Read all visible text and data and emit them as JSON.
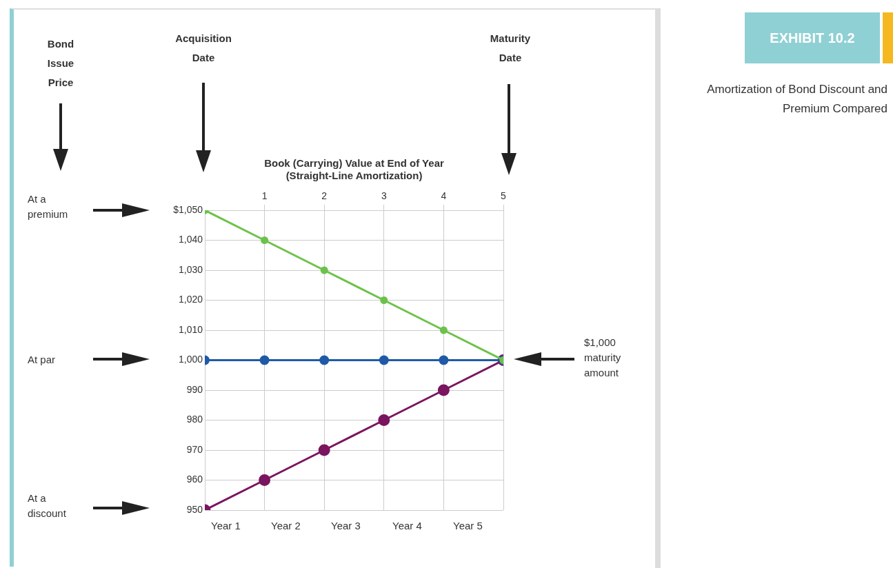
{
  "chart_data": {
    "type": "line",
    "title": "Amortization of Bond Discount and Premium Compared",
    "subtitle": "EXHIBIT 10.2",
    "x2label": "Book (Carrying) Value at End of Year\n(Straight-Line Amortization)",
    "x": [
      0,
      1,
      2,
      3,
      4,
      5
    ],
    "series": [
      {
        "color": "#6cc24a",
        "values": [
          1050,
          1040,
          1030,
          1020,
          1010,
          1000
        ]
      },
      {
        "color": "#1f5aa6",
        "values": [
          1000,
          1000,
          1000,
          1000,
          1000,
          1000
        ]
      },
      {
        "color": "#7a1560",
        "values": [
          950,
          960,
          970,
          980,
          990,
          1000
        ]
      }
    ],
    "xlim": [
      0,
      5
    ],
    "xticks": [
      1,
      2,
      3,
      4,
      5
    ],
    "ylim": [
      950,
      1050
    ],
    "yticks": [
      950,
      960,
      970,
      980,
      990,
      {
        "value": 1000,
        "label": "1,000"
      },
      {
        "value": 1010,
        "label": "1,010"
      },
      {
        "value": 1020,
        "label": "1,020"
      },
      {
        "value": 1030,
        "label": "1,030"
      },
      {
        "value": 1040,
        "label": "1,040"
      },
      {
        "value": 1050,
        "label": "$1,050"
      }
    ],
    "grid": true,
    "marker": "circle",
    "line_style": "solid",
    "annotations": [
      "Bond Issue Price",
      "Acquisition Date",
      "Maturity Date",
      "At a premium",
      "At par",
      "At a discount",
      "$1,000 maturity amount",
      "Year 1",
      "Year 2",
      "Year 3",
      "Year 4",
      "Year 5"
    ]
  }
}
